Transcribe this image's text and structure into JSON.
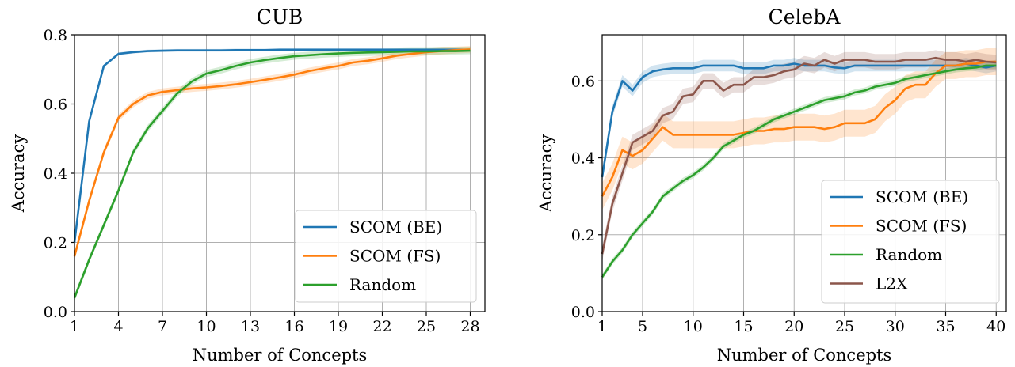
{
  "chart_data": [
    {
      "type": "line",
      "title": "CUB",
      "xlabel": "Number of Concepts",
      "ylabel": "Accuracy",
      "xlim": [
        1,
        29
      ],
      "ylim": [
        0,
        0.8
      ],
      "xticks": [
        1,
        4,
        7,
        10,
        13,
        16,
        19,
        22,
        25,
        28
      ],
      "yticks": [
        0.0,
        0.2,
        0.4,
        0.6,
        0.8
      ],
      "ytick_labels": [
        "0.0",
        "0.2",
        "0.4",
        "0.6",
        "0.8"
      ],
      "grid": true,
      "legend_position": "lower-right",
      "x": [
        1,
        2,
        3,
        4,
        5,
        6,
        7,
        8,
        9,
        10,
        11,
        12,
        13,
        14,
        15,
        16,
        17,
        18,
        19,
        20,
        21,
        22,
        23,
        24,
        25,
        26,
        27,
        28
      ],
      "series": [
        {
          "name": "SCOM (BE)",
          "color": "#1f77b4",
          "band": 0.004,
          "values": [
            0.2,
            0.55,
            0.71,
            0.745,
            0.75,
            0.753,
            0.754,
            0.755,
            0.755,
            0.755,
            0.755,
            0.756,
            0.756,
            0.756,
            0.757,
            0.757,
            0.757,
            0.757,
            0.757,
            0.757,
            0.757,
            0.757,
            0.757,
            0.757,
            0.757,
            0.757,
            0.757,
            0.757
          ]
        },
        {
          "name": "SCOM (FS)",
          "color": "#ff7f0e",
          "band": 0.01,
          "values": [
            0.16,
            0.32,
            0.46,
            0.56,
            0.6,
            0.625,
            0.635,
            0.64,
            0.645,
            0.648,
            0.652,
            0.657,
            0.663,
            0.67,
            0.677,
            0.685,
            0.695,
            0.703,
            0.71,
            0.72,
            0.725,
            0.732,
            0.74,
            0.745,
            0.75,
            0.753,
            0.756,
            0.758
          ]
        },
        {
          "name": "Random",
          "color": "#2ca02c",
          "band": 0.01,
          "values": [
            0.04,
            0.15,
            0.25,
            0.35,
            0.46,
            0.53,
            0.58,
            0.63,
            0.665,
            0.688,
            0.698,
            0.71,
            0.72,
            0.727,
            0.733,
            0.738,
            0.741,
            0.744,
            0.746,
            0.748,
            0.749,
            0.75,
            0.751,
            0.752,
            0.752,
            0.753,
            0.753,
            0.754
          ]
        }
      ]
    },
    {
      "type": "line",
      "title": "CelebA",
      "xlabel": "Number of Concepts",
      "ylabel": "Accuracy",
      "xlim": [
        1,
        41
      ],
      "ylim": [
        0,
        0.72
      ],
      "xticks": [
        1,
        5,
        10,
        15,
        20,
        25,
        30,
        35,
        40
      ],
      "yticks": [
        0.0,
        0.2,
        0.4,
        0.6
      ],
      "ytick_labels": [
        "0.0",
        "0.2",
        "0.4",
        "0.6"
      ],
      "grid": true,
      "legend_position": "lower-right",
      "x": [
        1,
        2,
        3,
        4,
        5,
        6,
        7,
        8,
        9,
        10,
        11,
        12,
        13,
        14,
        15,
        16,
        17,
        18,
        19,
        20,
        21,
        22,
        23,
        24,
        25,
        26,
        27,
        28,
        29,
        30,
        31,
        32,
        33,
        34,
        35,
        36,
        37,
        38,
        39,
        40
      ],
      "series": [
        {
          "name": "SCOM (BE)",
          "color": "#1f77b4",
          "band": 0.015,
          "values": [
            0.35,
            0.52,
            0.6,
            0.575,
            0.61,
            0.625,
            0.63,
            0.633,
            0.633,
            0.633,
            0.64,
            0.64,
            0.64,
            0.64,
            0.633,
            0.633,
            0.633,
            0.64,
            0.64,
            0.645,
            0.64,
            0.64,
            0.64,
            0.635,
            0.633,
            0.64,
            0.64,
            0.64,
            0.64,
            0.64,
            0.64,
            0.64,
            0.64,
            0.64,
            0.64,
            0.64,
            0.645,
            0.64,
            0.635,
            0.64
          ]
        },
        {
          "name": "SCOM (FS)",
          "color": "#ff7f0e",
          "band": 0.035,
          "values": [
            0.3,
            0.35,
            0.42,
            0.405,
            0.42,
            0.45,
            0.48,
            0.46,
            0.46,
            0.46,
            0.46,
            0.46,
            0.46,
            0.46,
            0.465,
            0.47,
            0.47,
            0.475,
            0.475,
            0.48,
            0.48,
            0.48,
            0.475,
            0.48,
            0.49,
            0.49,
            0.49,
            0.5,
            0.53,
            0.55,
            0.58,
            0.59,
            0.59,
            0.62,
            0.64,
            0.64,
            0.645,
            0.645,
            0.65,
            0.65
          ]
        },
        {
          "name": "Random",
          "color": "#2ca02c",
          "band": 0.008,
          "values": [
            0.09,
            0.13,
            0.16,
            0.2,
            0.23,
            0.26,
            0.3,
            0.32,
            0.34,
            0.355,
            0.375,
            0.4,
            0.43,
            0.445,
            0.46,
            0.47,
            0.485,
            0.5,
            0.51,
            0.52,
            0.53,
            0.54,
            0.55,
            0.555,
            0.56,
            0.57,
            0.575,
            0.585,
            0.59,
            0.595,
            0.605,
            0.61,
            0.615,
            0.62,
            0.625,
            0.63,
            0.633,
            0.635,
            0.64,
            0.64
          ]
        },
        {
          "name": "L2X",
          "color": "#8c564b",
          "band": 0.02,
          "values": [
            0.15,
            0.28,
            0.36,
            0.44,
            0.455,
            0.47,
            0.51,
            0.52,
            0.56,
            0.565,
            0.6,
            0.6,
            0.575,
            0.59,
            0.59,
            0.61,
            0.61,
            0.615,
            0.625,
            0.63,
            0.645,
            0.64,
            0.655,
            0.645,
            0.655,
            0.655,
            0.655,
            0.65,
            0.65,
            0.65,
            0.655,
            0.655,
            0.655,
            0.66,
            0.655,
            0.655,
            0.65,
            0.655,
            0.65,
            0.648
          ]
        }
      ]
    }
  ]
}
